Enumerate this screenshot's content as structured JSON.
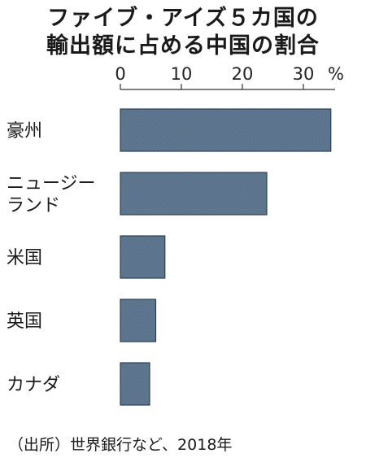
{
  "title": {
    "line1": "ファイブ・アイズ５カ国の",
    "line2": "輸出額に占める中国の割合"
  },
  "source": "（出所）世界銀行など、2018年",
  "chart_data": {
    "type": "bar",
    "orientation": "horizontal",
    "categories": [
      [
        "豪州"
      ],
      [
        "ニュージー",
        "ランド"
      ],
      [
        "米国"
      ],
      [
        "英国"
      ],
      [
        "カナダ"
      ]
    ],
    "values": [
      34.5,
      24.0,
      7.3,
      5.8,
      4.8
    ],
    "unit": "%",
    "xlim": [
      0,
      35
    ],
    "ticks": [
      0,
      10,
      20,
      30
    ],
    "grid": false,
    "bar_color": "#5a7189"
  }
}
